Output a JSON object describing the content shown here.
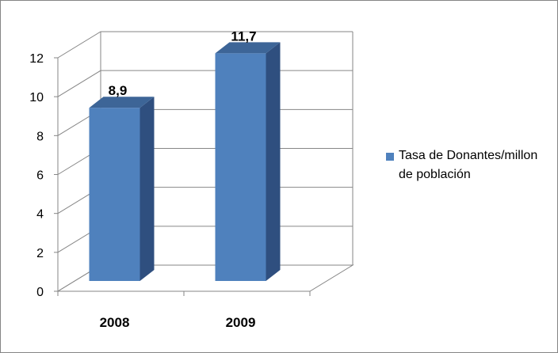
{
  "chart_data": {
    "type": "bar",
    "three_d": true,
    "categories": [
      "2008",
      "2009"
    ],
    "series": [
      {
        "name": "Tasa de Donantes/millon de población",
        "values": [
          8.9,
          11.7
        ],
        "data_labels": [
          "8,9",
          "11,7"
        ],
        "color": "#4F81BD",
        "side_color": "#2F4F7F",
        "top_color": "#3D6597"
      }
    ],
    "title": "",
    "xlabel": "",
    "ylabel": "",
    "ylim": [
      0,
      12
    ],
    "yticks": [
      0,
      2,
      4,
      6,
      8,
      10,
      12
    ],
    "ytick_labels": [
      "0",
      "2",
      "4",
      "6",
      "8",
      "10",
      "12"
    ],
    "grid": true,
    "legend_position": "right"
  }
}
